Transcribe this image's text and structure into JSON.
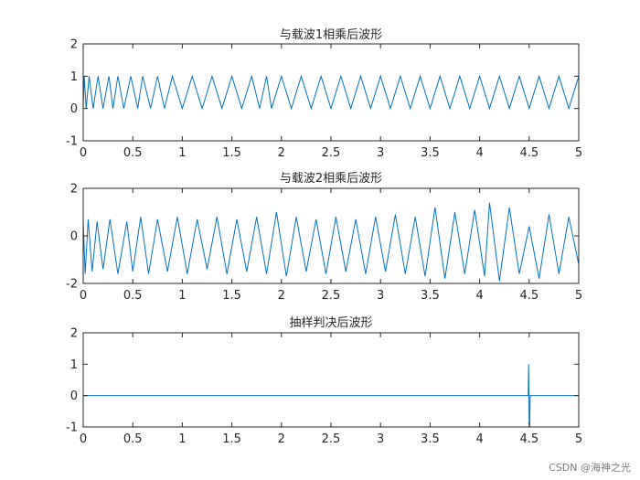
{
  "watermark": "CSDN @海神之光",
  "colors": {
    "line": "#0072BD",
    "axis": "#262626",
    "background": "#ffffff"
  },
  "chart_data": [
    {
      "type": "line",
      "title": "与载波1相乘后波形",
      "xlim": [
        0,
        5
      ],
      "ylim": [
        -1,
        2
      ],
      "xticks": [
        0,
        0.5,
        1,
        1.5,
        2,
        2.5,
        3,
        3.5,
        4,
        4.5,
        5
      ],
      "xtick_labels": [
        "0",
        "0.5",
        "1",
        "1.5",
        "2",
        "2.5",
        "3",
        "3.5",
        "4",
        "4.5",
        "5"
      ],
      "yticks": [
        -1,
        0,
        1,
        2
      ],
      "ytick_labels": [
        "-1",
        "0",
        "1",
        "2"
      ],
      "grid": false,
      "series": [
        {
          "x": [
            0,
            0.01,
            0.03,
            0.06,
            0.1,
            0.15,
            0.2,
            0.26,
            0.3,
            0.35,
            0.41,
            0.48,
            0.55,
            0.6,
            0.68,
            0.75,
            0.82,
            0.9,
            1.0,
            1.1,
            1.2,
            1.3,
            1.4,
            1.5,
            1.6,
            1.7,
            1.78,
            1.85,
            1.9,
            2.0,
            2.1,
            2.2,
            2.3,
            2.4,
            2.5,
            2.6,
            2.7,
            2.8,
            2.9,
            3.0,
            3.1,
            3.2,
            3.3,
            3.4,
            3.5,
            3.6,
            3.7,
            3.8,
            3.9,
            4.0,
            4.1,
            4.2,
            4.3,
            4.4,
            4.5,
            4.6,
            4.7,
            4.8,
            4.9,
            5.0
          ],
          "y": [
            0,
            1,
            0,
            1,
            0,
            1,
            0,
            1,
            0,
            1,
            0,
            1,
            0,
            1,
            0,
            1,
            0,
            1,
            0,
            1,
            0,
            1,
            0,
            1,
            0,
            1,
            0,
            1,
            0,
            1,
            0,
            1,
            0,
            1,
            0,
            1,
            0,
            1,
            0,
            1,
            0,
            1,
            0,
            1,
            0,
            1,
            0,
            1,
            0,
            1,
            0,
            1,
            0,
            1,
            0,
            1,
            0,
            1,
            0,
            1
          ]
        }
      ]
    },
    {
      "type": "line",
      "title": "与载波2相乘后波形",
      "xlim": [
        0,
        5
      ],
      "ylim": [
        -2,
        2
      ],
      "xticks": [
        0,
        0.5,
        1,
        1.5,
        2,
        2.5,
        3,
        3.5,
        4,
        4.5,
        5
      ],
      "xtick_labels": [
        "0",
        "0.5",
        "1",
        "1.5",
        "2",
        "2.5",
        "3",
        "3.5",
        "4",
        "4.5",
        "5"
      ],
      "yticks": [
        -2,
        0,
        2
      ],
      "ytick_labels": [
        "-2",
        "0",
        "2"
      ],
      "grid": false,
      "series": [
        {
          "x": [
            0,
            0.02,
            0.05,
            0.09,
            0.14,
            0.2,
            0.27,
            0.35,
            0.44,
            0.5,
            0.58,
            0.66,
            0.75,
            0.85,
            0.95,
            1.05,
            1.15,
            1.25,
            1.35,
            1.45,
            1.55,
            1.65,
            1.75,
            1.85,
            1.95,
            2.05,
            2.15,
            2.25,
            2.35,
            2.45,
            2.55,
            2.65,
            2.75,
            2.85,
            2.95,
            3.05,
            3.15,
            3.25,
            3.35,
            3.45,
            3.55,
            3.65,
            3.75,
            3.85,
            3.95,
            4.05,
            4.1,
            4.2,
            4.3,
            4.4,
            4.5,
            4.6,
            4.7,
            4.8,
            4.9,
            5.0
          ],
          "y": [
            0.6,
            -1.6,
            0.7,
            -1.5,
            0.6,
            -1.4,
            0.7,
            -1.6,
            0.6,
            -1.5,
            0.8,
            -1.6,
            0.7,
            -1.5,
            0.8,
            -1.6,
            0.7,
            -1.4,
            0.8,
            -1.6,
            0.7,
            -1.5,
            0.8,
            -1.6,
            1.0,
            -1.7,
            0.8,
            -1.5,
            0.7,
            -1.6,
            0.8,
            -1.5,
            0.7,
            -1.6,
            0.8,
            -1.5,
            0.9,
            -1.6,
            0.8,
            -1.7,
            1.2,
            -1.8,
            1.0,
            -1.6,
            1.1,
            -1.7,
            1.4,
            -1.9,
            1.2,
            -1.6,
            0.4,
            -1.8,
            0.9,
            -1.6,
            0.8,
            -1.2
          ]
        }
      ]
    },
    {
      "type": "line",
      "title": "抽样判决后波形",
      "xlim": [
        0,
        5
      ],
      "ylim": [
        -1,
        2
      ],
      "xticks": [
        0,
        0.5,
        1,
        1.5,
        2,
        2.5,
        3,
        3.5,
        4,
        4.5,
        5
      ],
      "xtick_labels": [
        "0",
        "0.5",
        "1",
        "1.5",
        "2",
        "2.5",
        "3",
        "3.5",
        "4",
        "4.5",
        "5"
      ],
      "yticks": [
        -1,
        0,
        1,
        2
      ],
      "ytick_labels": [
        "-1",
        "0",
        "1",
        "2"
      ],
      "grid": false,
      "series": [
        {
          "x": [
            0,
            4.49,
            4.495,
            4.5,
            4.505,
            4.51,
            5.0
          ],
          "y": [
            0,
            0,
            1,
            -0.9,
            -1,
            0,
            0
          ]
        }
      ]
    }
  ]
}
